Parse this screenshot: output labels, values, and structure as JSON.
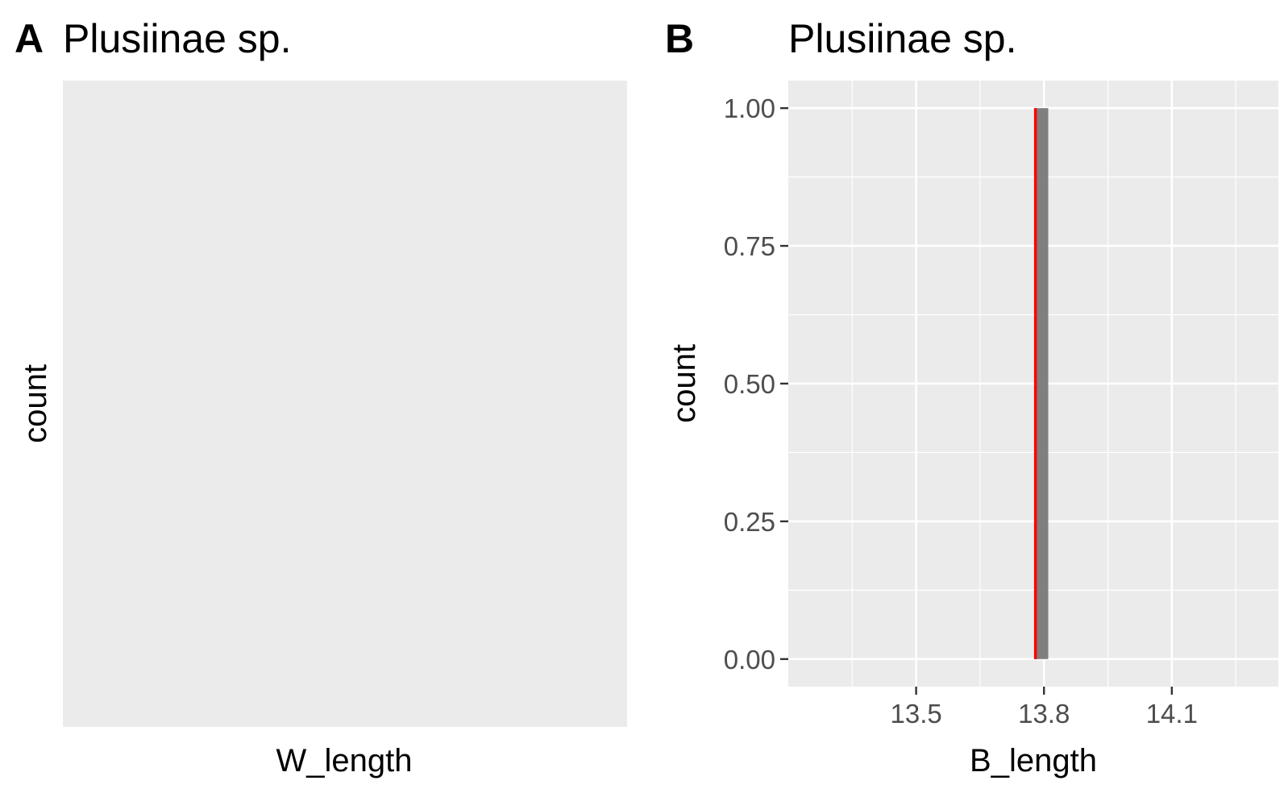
{
  "chart_data": [
    {
      "panel": "A",
      "type": "bar",
      "title": "Plusiinae sp.",
      "xlabel": "W_length",
      "ylabel": "count",
      "values": [],
      "grid": false,
      "colors": {
        "panel_bg": "#ebebeb"
      }
    },
    {
      "panel": "B",
      "type": "bar",
      "title": "Plusiinae sp.",
      "xlabel": "B_length",
      "ylabel": "count",
      "bars": [
        {
          "x_start": 13.78,
          "x_end": 13.81,
          "count": 1
        }
      ],
      "vline": {
        "x": 13.78,
        "color": "#ff0000"
      },
      "x_ticks": [
        "13.5",
        "13.8",
        "14.1"
      ],
      "x_tick_values": [
        13.5,
        13.8,
        14.1
      ],
      "y_ticks": [
        "0.00",
        "0.25",
        "0.50",
        "0.75",
        "1.00"
      ],
      "y_tick_values": [
        0,
        0.25,
        0.5,
        0.75,
        1.0
      ],
      "xlim": [
        13.2,
        14.35
      ],
      "ylim": [
        -0.05,
        1.05
      ],
      "grid": true,
      "colors": {
        "panel_bg": "#ebebeb",
        "grid": "#ffffff",
        "bar": "#7f7f7f",
        "vline": "#ff0000"
      }
    }
  ]
}
